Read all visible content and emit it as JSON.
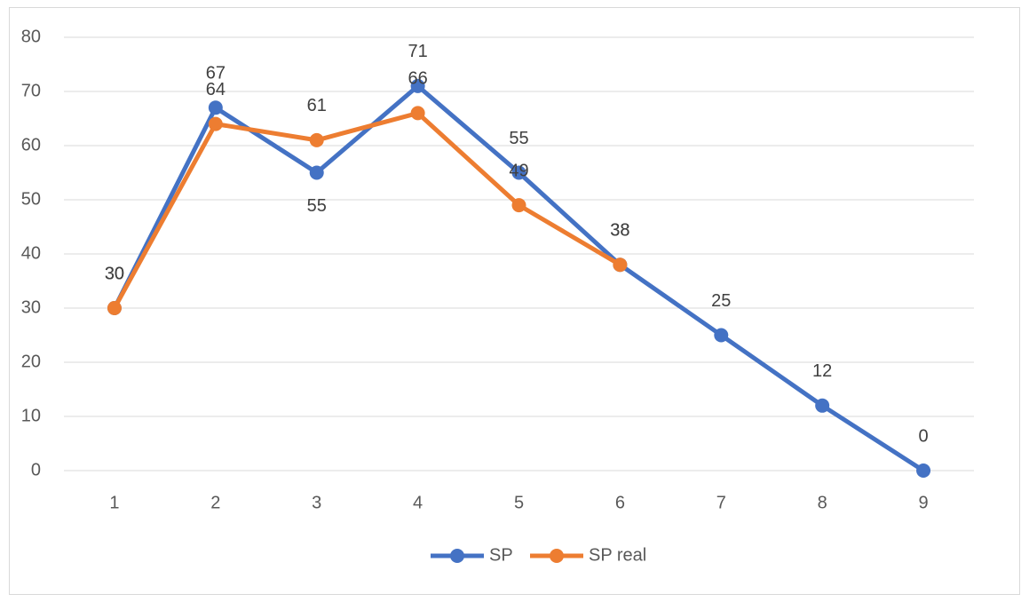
{
  "chart_data": {
    "type": "line",
    "categories": [
      "1",
      "2",
      "3",
      "4",
      "5",
      "6",
      "7",
      "8",
      "9"
    ],
    "series": [
      {
        "name": "SP",
        "color": "#4472c4",
        "values": [
          30,
          67,
          55,
          71,
          55,
          38,
          25,
          12,
          0
        ]
      },
      {
        "name": "SP real",
        "color": "#ed7d31",
        "values": [
          30,
          64,
          61,
          66,
          49,
          38,
          null,
          null,
          null
        ]
      }
    ],
    "ylim": [
      0,
      80
    ],
    "yticks": [
      0,
      10,
      20,
      30,
      40,
      50,
      60,
      70,
      80
    ],
    "grid": true,
    "legend": "bottom"
  }
}
